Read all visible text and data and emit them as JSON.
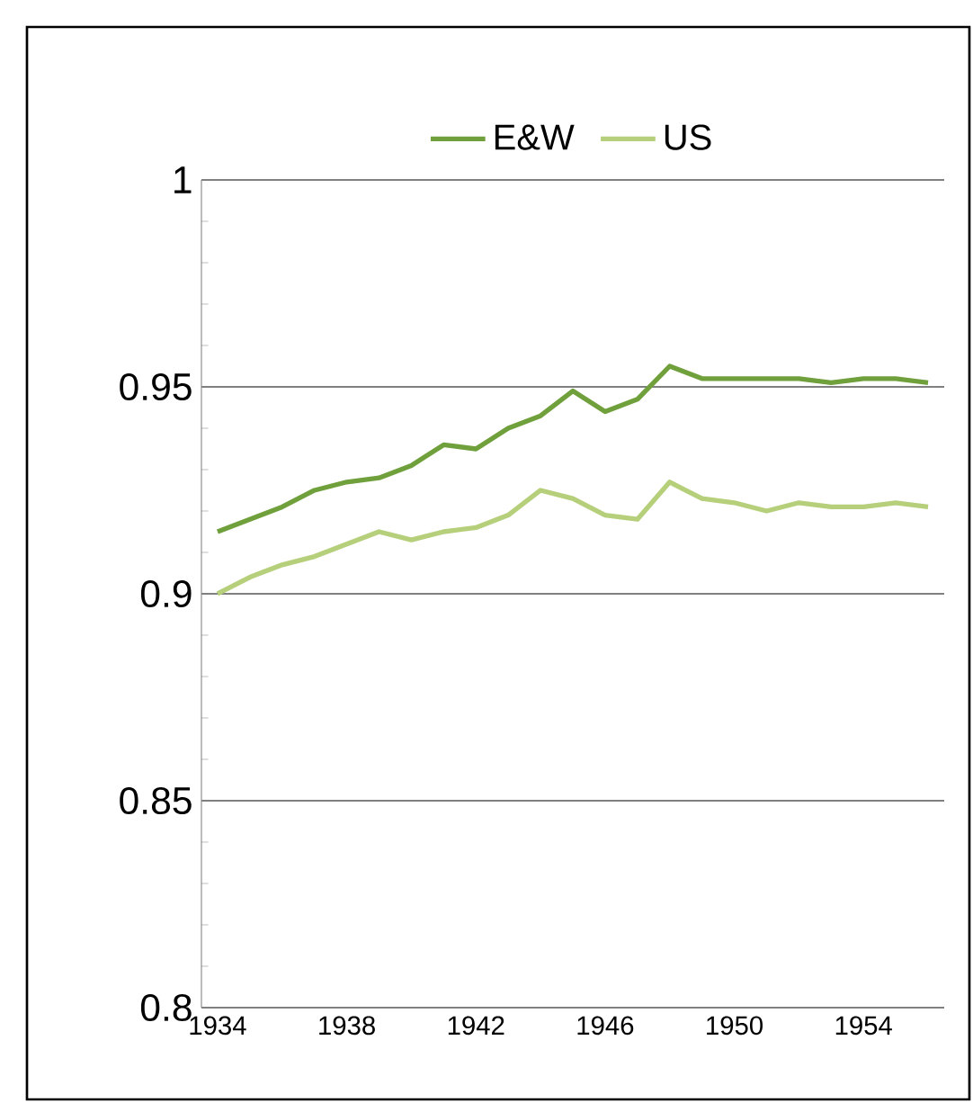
{
  "chart_data": {
    "type": "line",
    "x": [
      1934,
      1935,
      1936,
      1937,
      1938,
      1939,
      1940,
      1941,
      1942,
      1943,
      1944,
      1945,
      1946,
      1947,
      1948,
      1949,
      1950,
      1951,
      1952,
      1953,
      1954,
      1955,
      1956
    ],
    "series": [
      {
        "name": "E&W",
        "color": "#70a03c",
        "values": [
          0.915,
          0.918,
          0.921,
          0.925,
          0.927,
          0.928,
          0.931,
          0.936,
          0.935,
          0.94,
          0.943,
          0.949,
          0.944,
          0.947,
          0.955,
          0.952,
          0.952,
          0.952,
          0.952,
          0.951,
          0.952,
          0.952,
          0.951
        ]
      },
      {
        "name": "US",
        "color": "#b5cf7a",
        "values": [
          0.9,
          0.904,
          0.907,
          0.909,
          0.912,
          0.915,
          0.913,
          0.915,
          0.916,
          0.919,
          0.925,
          0.923,
          0.919,
          0.918,
          0.927,
          0.923,
          0.922,
          0.92,
          0.922,
          0.921,
          0.921,
          0.922,
          0.921
        ]
      }
    ],
    "xlim": [
      1933.5,
      1956.5
    ],
    "xticks": [
      1934,
      1938,
      1942,
      1946,
      1950,
      1954
    ],
    "ylim": [
      0.8,
      1
    ],
    "yticks": [
      0.8,
      0.85,
      0.9,
      0.95,
      1
    ],
    "grid": "y",
    "legend": "top"
  }
}
